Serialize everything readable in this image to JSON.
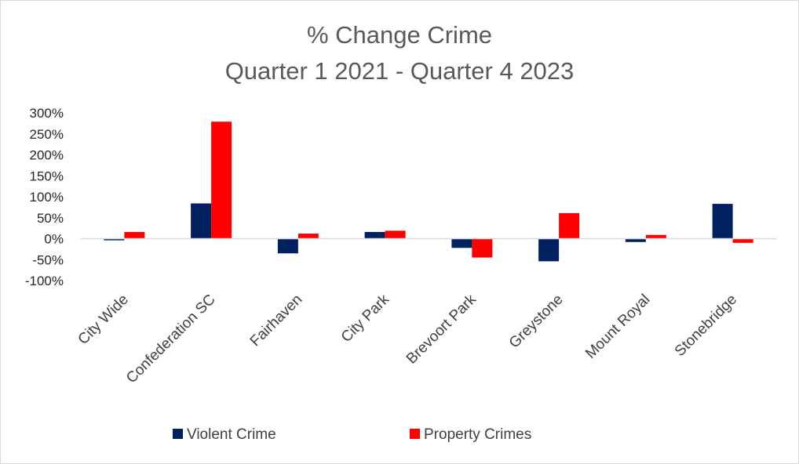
{
  "chart_data": {
    "type": "bar",
    "title": "% Change Crime",
    "subtitle": "Quarter 1 2021 - Quarter 4 2023",
    "categories": [
      "City Wide",
      "Confederation SC",
      "Fairhaven",
      "City Park",
      "Brevoort Park",
      "Greystone",
      "Mount Royal",
      "Stonebridge"
    ],
    "series": [
      {
        "name": "Violent Crime",
        "color": "#002060",
        "values": [
          -4,
          84,
          -35,
          16,
          -22,
          -54,
          -8,
          83
        ]
      },
      {
        "name": "Property Crimes",
        "color": "#ff0000",
        "values": [
          16,
          279,
          12,
          19,
          -45,
          61,
          9,
          -10
        ]
      }
    ],
    "y_ticks": [
      "300%",
      "250%",
      "200%",
      "150%",
      "100%",
      "50%",
      "0%",
      "-50%",
      "-100%"
    ],
    "ylim": [
      -100,
      300
    ],
    "y_step": 50,
    "y_format": "percent",
    "grid": false,
    "legend_position": "bottom"
  }
}
